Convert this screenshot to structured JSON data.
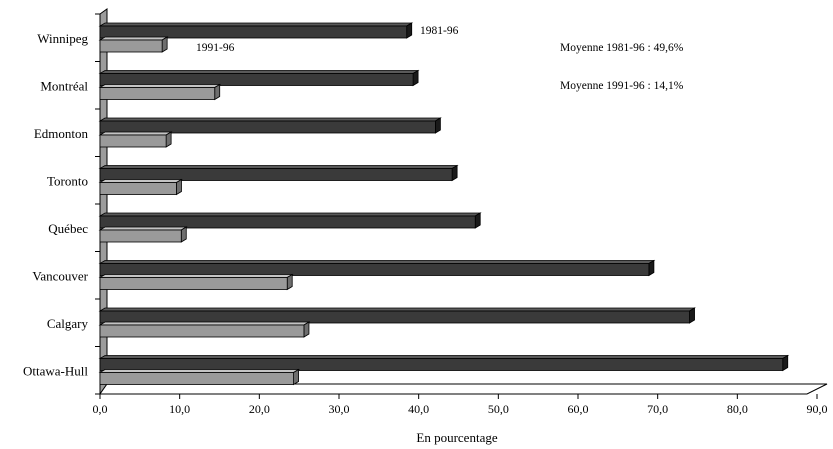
{
  "chart_data": {
    "type": "bar",
    "orientation": "horizontal",
    "categories": [
      "Winnipeg",
      "Montréal",
      "Edmonton",
      "Toronto",
      "Québec",
      "Vancouver",
      "Calgary",
      "Ottawa-Hull"
    ],
    "series": [
      {
        "name": "1981-96",
        "color": "#3a3a3a",
        "values": [
          38.5,
          39.3,
          42.1,
          44.2,
          47.1,
          68.9,
          74.0,
          85.7
        ]
      },
      {
        "name": "1991-96",
        "color": "#9a9a9a",
        "values": [
          7.8,
          14.4,
          8.3,
          9.6,
          10.2,
          23.5,
          25.6,
          24.3
        ]
      }
    ],
    "xlabel": "En pourcentage",
    "xlim": [
      0,
      90
    ],
    "xticks": [
      "0,0",
      "10,0",
      "20,0",
      "30,0",
      "40,0",
      "50,0",
      "60,0",
      "70,0",
      "80,0",
      "90,0"
    ],
    "grid": false,
    "series_labels_on_chart": [
      "1981-96",
      "1991-96"
    ],
    "annotations": [
      "Moyenne 1981-96 : 49,6%",
      "Moyenne 1991-96 : 14,1%"
    ]
  }
}
